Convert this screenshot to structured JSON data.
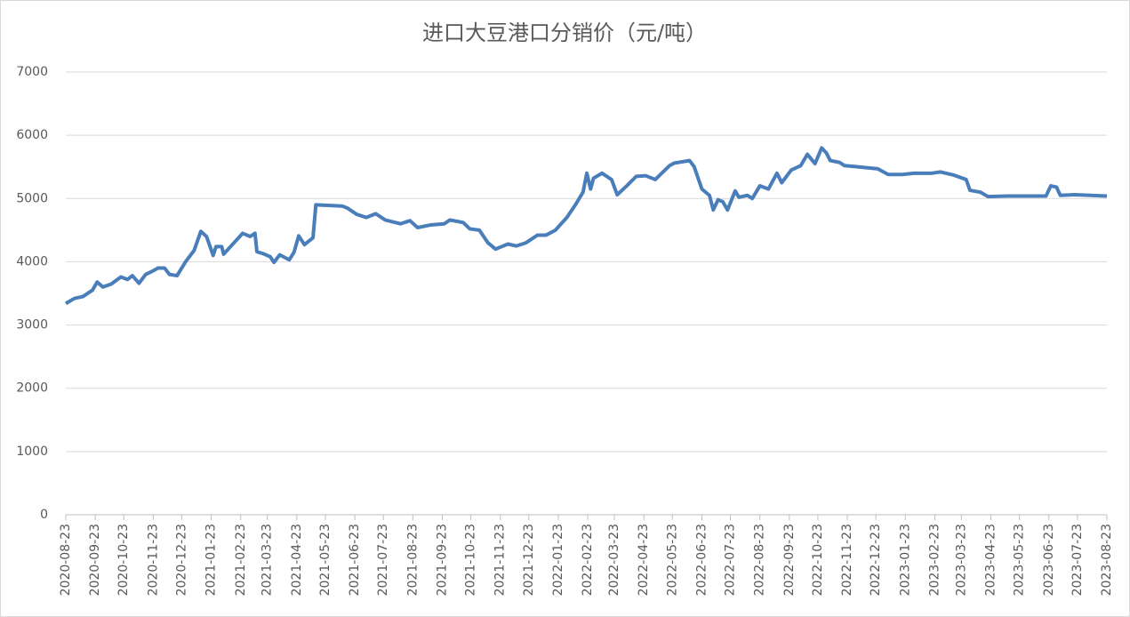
{
  "chart_data": {
    "type": "line",
    "title": "进口大豆港口分销价（元/吨）",
    "x": [
      "2020-08-23",
      "2020-09-01",
      "2020-09-10",
      "2020-09-20",
      "2020-09-25",
      "2020-10-01",
      "2020-10-10",
      "2020-10-20",
      "2020-10-27",
      "2020-11-01",
      "2020-11-08",
      "2020-11-15",
      "2020-11-22",
      "2020-11-28",
      "2020-12-05",
      "2020-12-10",
      "2020-12-18",
      "2020-12-27",
      "2021-01-05",
      "2021-01-12",
      "2021-01-18",
      "2021-01-25",
      "2021-01-28",
      "2021-02-03",
      "2021-02-05",
      "2021-02-25",
      "2021-03-05",
      "2021-03-10",
      "2021-03-12",
      "2021-03-20",
      "2021-03-26",
      "2021-03-30",
      "2021-04-05",
      "2021-04-15",
      "2021-04-20",
      "2021-04-25",
      "2021-05-01",
      "2021-05-10",
      "2021-05-13",
      "2021-06-10",
      "2021-06-15",
      "2021-06-25",
      "2021-07-05",
      "2021-07-15",
      "2021-07-25",
      "2021-08-10",
      "2021-08-20",
      "2021-08-28",
      "2021-09-10",
      "2021-09-25",
      "2021-10-01",
      "2021-10-15",
      "2021-10-22",
      "2021-11-01",
      "2021-11-10",
      "2021-11-18",
      "2021-12-01",
      "2021-12-10",
      "2021-12-20",
      "2022-01-01",
      "2022-01-10",
      "2022-01-20",
      "2022-02-01",
      "2022-02-10",
      "2022-02-18",
      "2022-02-22",
      "2022-02-26",
      "2022-03-01",
      "2022-03-10",
      "2022-03-20",
      "2022-03-26",
      "2022-04-05",
      "2022-04-15",
      "2022-04-25",
      "2022-05-05",
      "2022-05-20",
      "2022-05-25",
      "2022-06-10",
      "2022-06-15",
      "2022-06-23",
      "2022-07-01",
      "2022-07-05",
      "2022-07-10",
      "2022-07-15",
      "2022-07-20",
      "2022-07-28",
      "2022-08-01",
      "2022-08-10",
      "2022-08-15",
      "2022-08-23",
      "2022-09-01",
      "2022-09-10",
      "2022-09-15",
      "2022-09-25",
      "2022-10-05",
      "2022-10-12",
      "2022-10-20",
      "2022-10-27",
      "2022-11-01",
      "2022-11-05",
      "2022-11-15",
      "2022-11-20",
      "2022-12-05",
      "2022-12-25",
      "2023-01-05",
      "2023-01-20",
      "2023-02-01",
      "2023-02-20",
      "2023-03-01",
      "2023-03-15",
      "2023-03-28",
      "2023-04-01",
      "2023-04-12",
      "2023-04-20",
      "2023-05-10",
      "2023-06-20",
      "2023-06-25",
      "2023-07-01",
      "2023-07-05",
      "2023-07-20",
      "2023-08-23"
    ],
    "series": [
      {
        "name": "进口大豆港口分销价",
        "color": "#4a7ebb",
        "values": [
          3340,
          3420,
          3450,
          3550,
          3680,
          3600,
          3650,
          3760,
          3720,
          3780,
          3660,
          3800,
          3850,
          3900,
          3900,
          3800,
          3780,
          4000,
          4180,
          4480,
          4400,
          4100,
          4240,
          4240,
          4120,
          4450,
          4400,
          4450,
          4160,
          4120,
          4080,
          3990,
          4110,
          4030,
          4150,
          4410,
          4270,
          4380,
          4900,
          4880,
          4850,
          4750,
          4700,
          4760,
          4660,
          4600,
          4650,
          4540,
          4580,
          4600,
          4660,
          4620,
          4520,
          4500,
          4300,
          4200,
          4280,
          4250,
          4300,
          4420,
          4420,
          4500,
          4700,
          4900,
          5100,
          5400,
          5150,
          5320,
          5400,
          5300,
          5060,
          5200,
          5350,
          5360,
          5300,
          5520,
          5560,
          5600,
          5500,
          5150,
          5050,
          4820,
          4980,
          4950,
          4820,
          5120,
          5020,
          5050,
          5000,
          5200,
          5150,
          5400,
          5250,
          5450,
          5520,
          5700,
          5550,
          5800,
          5720,
          5600,
          5570,
          5520,
          5500,
          5470,
          5380,
          5380,
          5400,
          5400,
          5420,
          5370,
          5300,
          5130,
          5100,
          5030,
          5040,
          5040,
          5200,
          5180,
          5050,
          5060,
          5040
        ]
      }
    ],
    "xlim": [
      "2020-08-23",
      "2023-08-23"
    ],
    "xticks": [
      "2020-08-23",
      "2020-09-23",
      "2020-10-23",
      "2020-11-23",
      "2020-12-23",
      "2021-01-23",
      "2021-02-23",
      "2021-03-23",
      "2021-04-23",
      "2021-05-23",
      "2021-06-23",
      "2021-07-23",
      "2021-08-23",
      "2021-09-23",
      "2021-10-23",
      "2021-11-23",
      "2021-12-23",
      "2022-01-23",
      "2022-02-23",
      "2022-03-23",
      "2022-04-23",
      "2022-05-23",
      "2022-06-23",
      "2022-07-23",
      "2022-08-23",
      "2022-09-23",
      "2022-10-23",
      "2022-11-23",
      "2022-12-23",
      "2023-01-23",
      "2023-02-23",
      "2023-03-23",
      "2023-04-23",
      "2023-05-23",
      "2023-06-23",
      "2023-07-23",
      "2023-08-23"
    ],
    "ylim": [
      0,
      7000
    ],
    "yticks": [
      0,
      1000,
      2000,
      3000,
      4000,
      5000,
      6000,
      7000
    ],
    "grid": true
  }
}
